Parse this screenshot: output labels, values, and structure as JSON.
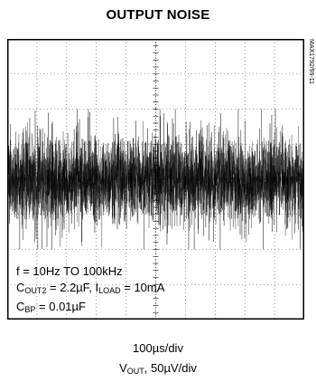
{
  "title": "OUTPUT NOISE",
  "figure_id": "MAX1792/99-11",
  "conditions": {
    "line1": "f = 10Hz TO 100kHz",
    "line2_c": "C",
    "line2_c_sub": "OUT2",
    "line2_c_val": " = 2.2µF, I",
    "line2_i_sub": "LOAD",
    "line2_i_val": " = 10mA",
    "line3_c": "C",
    "line3_c_sub": "BP",
    "line3_c_val": " = 0.01µF"
  },
  "caption": {
    "time_scale": "100µs/div",
    "v_prefix": "V",
    "v_sub": "OUT",
    "v_scale": ", 50µV/div"
  },
  "chart_data": {
    "type": "line",
    "title": "OUTPUT NOISE",
    "x_divisions": 10,
    "y_divisions": 8,
    "x_scale": "100µs/div",
    "y_scale": "50µV/div",
    "series": [
      {
        "values": {
          "center_div": 4.0,
          "dense_halfwidth_div": 0.8,
          "envelope_halfwidth_div": 2.0,
          "rms_uV": 40
        }
      }
    ],
    "grid": true
  },
  "colors": {
    "trace": "#000000",
    "grid": "#000000"
  }
}
